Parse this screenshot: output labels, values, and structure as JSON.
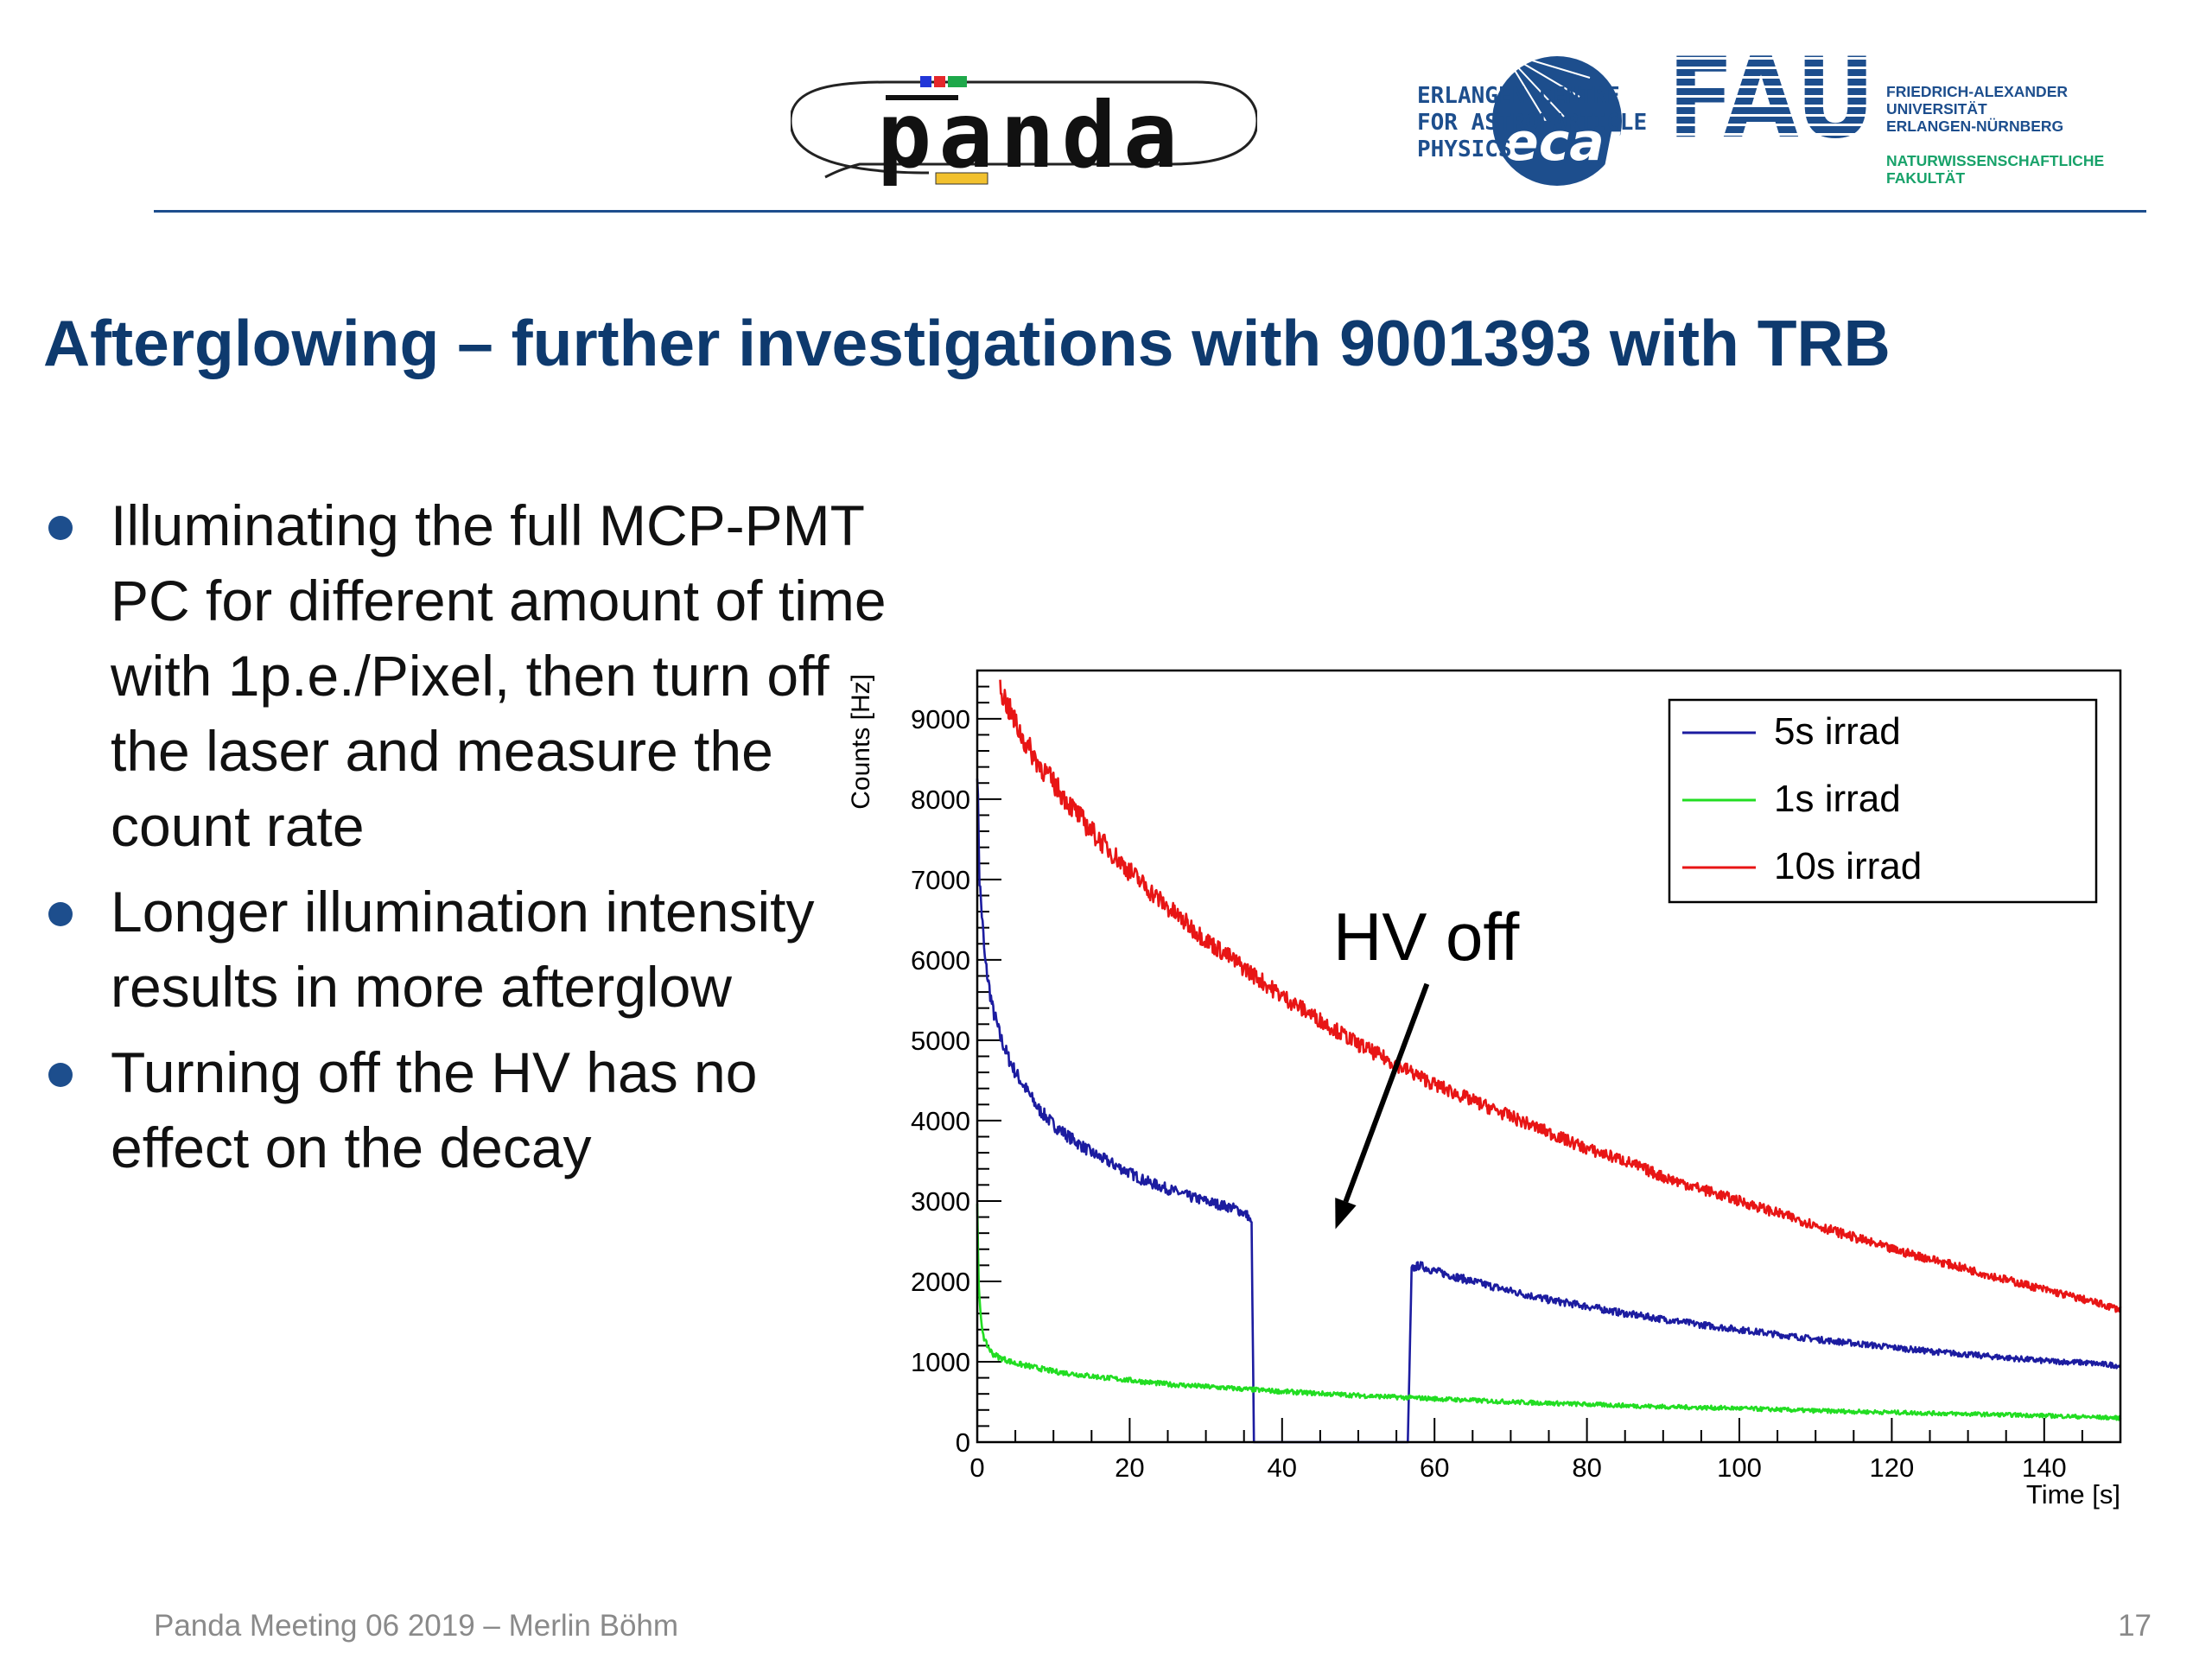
{
  "header": {
    "panda_logo_text": "panda",
    "ecap_logo_text": "ecap",
    "ecap_lines": [
      "ERLANGEN CENTRE",
      "FOR ASTROPARTICLE",
      "PHYSICS"
    ],
    "fau_logo_text": "FAU",
    "fau_lines": [
      "FRIEDRICH-ALEXANDER",
      "UNIVERSITÄT",
      "ERLANGEN-NÜRNBERG"
    ],
    "fau_sub_lines": [
      "NATURWISSENSCHAFTLICHE",
      "FAKULTÄT"
    ],
    "colors": {
      "brand_blue": "#1d4e8d",
      "brand_green": "#18a26a",
      "panda_yellow": "#f2c12e"
    }
  },
  "slide": {
    "title": "Afterglowing – further investigations with 9001393 with TRB",
    "bullets": [
      "Illuminating the full MCP-PMT PC for different amount of time with 1p.e./Pixel, then turn off the laser and measure the count rate",
      "Longer illumination intensity results in more afterglow",
      "Turning off the HV has no effect on the decay"
    ]
  },
  "chart_data": {
    "type": "line",
    "title": "",
    "xlabel": "Time [s]",
    "ylabel": "Counts [Hz]",
    "xlim": [
      0,
      150
    ],
    "ylim": [
      0,
      9600
    ],
    "xticks": [
      0,
      20,
      40,
      60,
      80,
      100,
      120,
      140
    ],
    "yticks": [
      0,
      1000,
      2000,
      3000,
      4000,
      5000,
      6000,
      7000,
      8000,
      9000
    ],
    "legend_position": "top-right",
    "annotation": {
      "text": "HV off",
      "arrow_from": [
        59,
        5700
      ],
      "arrow_to": [
        47,
        2650
      ]
    },
    "series": [
      {
        "name": "5s irrad",
        "color": "#1c1ca0",
        "x": [
          0,
          0.3,
          1,
          2,
          3,
          4,
          5,
          6,
          8,
          10,
          12,
          15,
          18,
          20,
          22,
          25,
          28,
          30,
          32,
          34,
          35.5,
          36,
          36.3,
          56.5,
          57,
          58,
          60,
          65,
          70,
          75,
          80,
          85,
          90,
          95,
          100,
          105,
          110,
          115,
          120,
          125,
          130,
          135,
          140,
          145,
          150
        ],
        "values": [
          8400,
          7000,
          6000,
          5400,
          5050,
          4800,
          4600,
          4450,
          4150,
          3950,
          3800,
          3600,
          3450,
          3350,
          3250,
          3150,
          3050,
          3000,
          2950,
          2900,
          2820,
          2700,
          0,
          0,
          2150,
          2200,
          2130,
          2000,
          1880,
          1770,
          1690,
          1600,
          1530,
          1460,
          1400,
          1340,
          1280,
          1230,
          1180,
          1130,
          1090,
          1050,
          1010,
          990,
          950
        ]
      },
      {
        "name": "1s irrad",
        "color": "#22dd22",
        "x": [
          0,
          0.2,
          0.5,
          1,
          2,
          3,
          5,
          8,
          10,
          15,
          20,
          25,
          30,
          40,
          50,
          60,
          70,
          80,
          90,
          100,
          110,
          120,
          130,
          140,
          150
        ],
        "values": [
          3000,
          1900,
          1500,
          1250,
          1100,
          1050,
          980,
          920,
          880,
          820,
          770,
          720,
          690,
          630,
          580,
          540,
          500,
          470,
          440,
          420,
          390,
          370,
          350,
          330,
          300
        ]
      },
      {
        "name": "10s irrad",
        "color": "#e81515",
        "x": [
          3,
          4,
          5,
          6,
          8,
          10,
          12,
          15,
          18,
          20,
          25,
          30,
          35,
          40,
          45,
          50,
          55,
          60,
          65,
          70,
          75,
          80,
          85,
          90,
          95,
          100,
          105,
          110,
          115,
          120,
          125,
          130,
          135,
          140,
          145,
          150
        ],
        "values": [
          9400,
          9150,
          8950,
          8750,
          8450,
          8200,
          7950,
          7600,
          7300,
          7100,
          6650,
          6250,
          5900,
          5550,
          5250,
          4950,
          4700,
          4450,
          4250,
          4050,
          3850,
          3650,
          3500,
          3300,
          3150,
          3000,
          2850,
          2700,
          2550,
          2400,
          2280,
          2150,
          2020,
          1900,
          1780,
          1650
        ]
      }
    ]
  },
  "footer": {
    "left": "Panda Meeting 06 2019 – Merlin Böhm",
    "page": "17"
  }
}
